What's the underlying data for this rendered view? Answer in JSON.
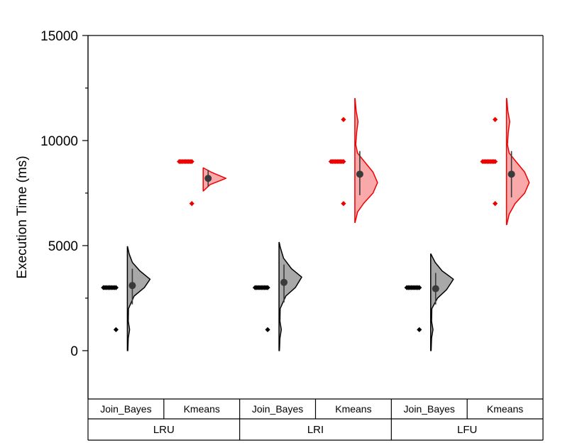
{
  "chart_data": {
    "type": "half-violin",
    "title": "",
    "xlabel": "",
    "ylabel": "Execution Time (ms)",
    "ylim": [
      -2300,
      15000
    ],
    "yticks": [
      0,
      5000,
      10000,
      15000
    ],
    "grid": false,
    "legend": "none",
    "colors": {
      "Join_Bayes": {
        "fill": "#a8a8a8",
        "stroke": "#000000",
        "points": "#000000",
        "mean": "#3a3a3a"
      },
      "Kmeans": {
        "fill": "#f9a9a9",
        "stroke": "#ee0000",
        "points": "#ee0000",
        "mean": "#3a3a3a"
      }
    },
    "groups": [
      {
        "label": "LRU",
        "categories": [
          "Join_Bayes",
          "Kmeans"
        ]
      },
      {
        "label": "LRI",
        "categories": [
          "Join_Bayes",
          "Kmeans"
        ]
      },
      {
        "label": "LFU",
        "categories": [
          "Join_Bayes",
          "Kmeans"
        ]
      }
    ],
    "series": [
      {
        "group": "LRU",
        "category": "Join_Bayes",
        "mean": 3100,
        "whisker": [
          2200,
          3900
        ],
        "density": [
          [
            0,
            0.02
          ],
          [
            600,
            0.04
          ],
          [
            1000,
            0.1
          ],
          [
            1400,
            0.04
          ],
          [
            2000,
            0.05
          ],
          [
            2600,
            0.3
          ],
          [
            3000,
            0.75
          ],
          [
            3400,
            1.0
          ],
          [
            3800,
            0.55
          ],
          [
            4200,
            0.22
          ],
          [
            4600,
            0.08
          ],
          [
            4950,
            0.01
          ]
        ],
        "points": [
          [
            3000,
            1.0
          ],
          [
            1000,
            0.15
          ]
        ]
      },
      {
        "group": "LRU",
        "category": "Kmeans",
        "mean": 8200,
        "whisker": [
          7800,
          8600
        ],
        "density": [
          [
            7600,
            0.01
          ],
          [
            7900,
            0.3
          ],
          [
            8200,
            1.0
          ],
          [
            8500,
            0.35
          ],
          [
            8700,
            0.01
          ]
        ],
        "points": [
          [
            9000,
            1.0
          ],
          [
            7000,
            0.15
          ]
        ]
      },
      {
        "group": "LRI",
        "category": "Join_Bayes",
        "mean": 3250,
        "whisker": [
          2300,
          4100
        ],
        "density": [
          [
            0,
            0.02
          ],
          [
            600,
            0.04
          ],
          [
            1000,
            0.1
          ],
          [
            1400,
            0.04
          ],
          [
            2000,
            0.05
          ],
          [
            2600,
            0.3
          ],
          [
            3000,
            0.72
          ],
          [
            3500,
            1.0
          ],
          [
            3900,
            0.55
          ],
          [
            4400,
            0.2
          ],
          [
            4900,
            0.06
          ],
          [
            5150,
            0.01
          ]
        ],
        "points": [
          [
            3000,
            1.0
          ],
          [
            1000,
            0.15
          ]
        ]
      },
      {
        "group": "LRI",
        "category": "Kmeans",
        "mean": 8400,
        "whisker": [
          7400,
          9500
        ],
        "density": [
          [
            6100,
            0.01
          ],
          [
            6600,
            0.12
          ],
          [
            7000,
            0.38
          ],
          [
            7500,
            0.8
          ],
          [
            8000,
            1.0
          ],
          [
            8500,
            0.8
          ],
          [
            9000,
            0.42
          ],
          [
            9400,
            0.12
          ],
          [
            9800,
            0.04
          ],
          [
            10400,
            0.08
          ],
          [
            10900,
            0.14
          ],
          [
            11400,
            0.06
          ],
          [
            12000,
            0.01
          ]
        ],
        "points": [
          [
            9000,
            1.0
          ],
          [
            7000,
            0.15
          ],
          [
            11000,
            0.15
          ]
        ]
      },
      {
        "group": "LFU",
        "category": "Join_Bayes",
        "mean": 2950,
        "whisker": [
          2200,
          3700
        ],
        "density": [
          [
            0,
            0.02
          ],
          [
            600,
            0.04
          ],
          [
            1000,
            0.1
          ],
          [
            1400,
            0.04
          ],
          [
            2000,
            0.05
          ],
          [
            2500,
            0.3
          ],
          [
            2900,
            0.7
          ],
          [
            3400,
            1.0
          ],
          [
            3800,
            0.5
          ],
          [
            4200,
            0.2
          ],
          [
            4600,
            0.01
          ]
        ],
        "points": [
          [
            3000,
            1.0
          ],
          [
            1000,
            0.15
          ]
        ]
      },
      {
        "group": "LFU",
        "category": "Kmeans",
        "mean": 8400,
        "whisker": [
          7300,
          9500
        ],
        "density": [
          [
            6000,
            0.01
          ],
          [
            6500,
            0.12
          ],
          [
            7000,
            0.38
          ],
          [
            7500,
            0.8
          ],
          [
            8000,
            1.0
          ],
          [
            8500,
            0.8
          ],
          [
            9000,
            0.42
          ],
          [
            9400,
            0.12
          ],
          [
            9800,
            0.04
          ],
          [
            10400,
            0.08
          ],
          [
            10900,
            0.14
          ],
          [
            11400,
            0.06
          ],
          [
            12000,
            0.01
          ]
        ],
        "points": [
          [
            9000,
            1.0
          ],
          [
            7000,
            0.15
          ],
          [
            11000,
            0.15
          ]
        ]
      }
    ]
  }
}
